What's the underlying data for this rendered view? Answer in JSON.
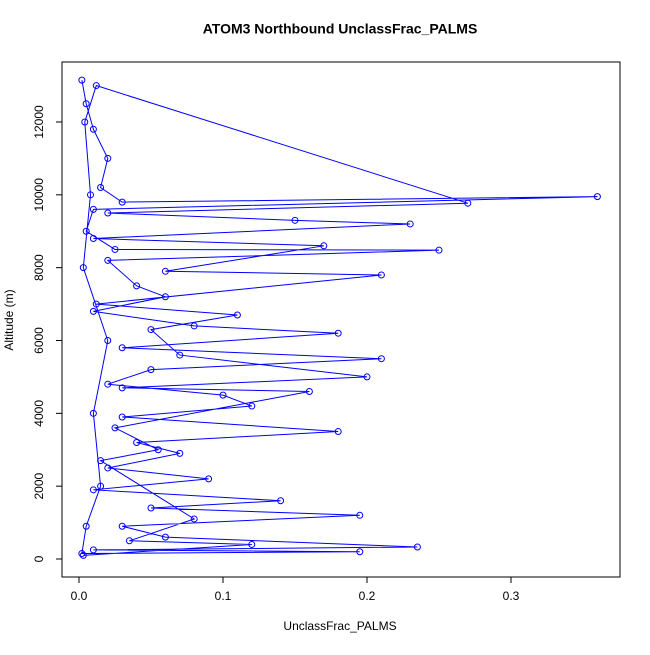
{
  "chart_data": {
    "type": "line",
    "title": "ATOM3 Northbound UnclassFrac_PALMS",
    "x_label": "UnclassFrac_PALMS",
    "y_label": "Altitude (m)",
    "color": "#0000ff",
    "markers": true,
    "x": [
      0.002,
      0.005,
      0.01,
      0.02,
      0.015,
      0.03,
      0.36,
      0.01,
      0.005,
      0.025,
      0.25,
      0.02,
      0.04,
      0.06,
      0.01,
      0.08,
      0.18,
      0.03,
      0.21,
      0.05,
      0.02,
      0.1,
      0.12,
      0.03,
      0.18,
      0.04,
      0.07,
      0.02,
      0.09,
      0.01,
      0.14,
      0.05,
      0.195,
      0.03,
      0.06,
      0.235,
      0.01,
      0.195,
      0.002,
      0.005,
      0.015,
      0.01,
      0.02,
      0.003,
      0.008,
      0.004,
      0.012,
      0.27,
      0.02,
      0.15,
      0.23,
      0.01,
      0.17,
      0.06,
      0.21,
      0.012,
      0.11,
      0.05,
      0.07,
      0.2,
      0.03,
      0.16,
      0.025,
      0.055,
      0.015,
      0.08,
      0.035,
      0.12,
      0.003
    ],
    "y": [
      13150,
      12500,
      11800,
      11000,
      10200,
      9800,
      9950,
      9600,
      9000,
      8500,
      8480,
      8200,
      7500,
      7200,
      6800,
      6400,
      6200,
      5800,
      5500,
      5200,
      4800,
      4500,
      4200,
      3900,
      3500,
      3200,
      2900,
      2500,
      2200,
      1900,
      1600,
      1400,
      1200,
      900,
      600,
      330,
      250,
      200,
      150,
      900,
      2000,
      4000,
      6000,
      8000,
      10000,
      12000,
      13000,
      9770,
      9500,
      9300,
      9200,
      8800,
      8600,
      7900,
      7800,
      7000,
      6700,
      6300,
      5600,
      5000,
      4700,
      4600,
      3600,
      3000,
      2700,
      1100,
      500,
      400,
      100
    ],
    "xlim": [
      -0.0118,
      0.3757
    ],
    "ylim": [
      -494,
      13647
    ],
    "xticks": [
      {
        "value": 0,
        "label": "0.0"
      },
      0.1,
      0.2,
      0.3
    ],
    "yticks": [
      0,
      2000,
      4000,
      6000,
      8000,
      10000,
      12000
    ]
  }
}
